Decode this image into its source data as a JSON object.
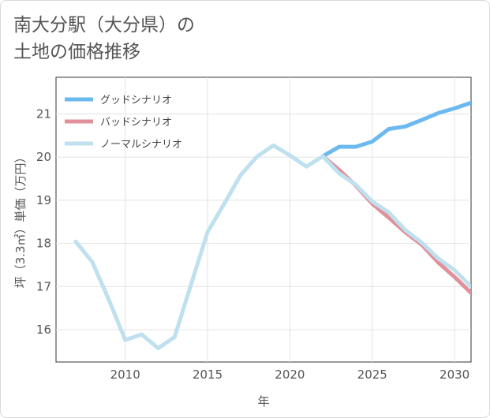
{
  "title_line1": "南大分駅（大分県）の",
  "title_line2": "土地の価格推移",
  "chart_data": {
    "type": "line",
    "title": "南大分駅（大分県）の土地の価格推移",
    "xlabel": "年",
    "ylabel": "坪（3.3㎡）単価（万円）",
    "xlim": [
      2005.8,
      2031
    ],
    "ylim": [
      15.25,
      21.85
    ],
    "xticks": [
      2010,
      2015,
      2020,
      2025,
      2030
    ],
    "yticks": [
      16,
      17,
      18,
      19,
      20,
      21
    ],
    "grid": true,
    "legend_position": "top-left",
    "series": [
      {
        "name": "グッドシナリオ",
        "color": "#6cb9f0",
        "x": [
          2022,
          2023,
          2024,
          2025,
          2026,
          2027,
          2028,
          2029,
          2030,
          2031
        ],
        "values": [
          20.02,
          20.24,
          20.24,
          20.36,
          20.65,
          20.71,
          20.86,
          21.02,
          21.13,
          21.26
        ]
      },
      {
        "name": "バッドシナリオ",
        "color": "#e0919a",
        "x": [
          2022,
          2023,
          2024,
          2025,
          2026,
          2027,
          2028,
          2029,
          2030,
          2031
        ],
        "values": [
          20.02,
          19.7,
          19.34,
          18.92,
          18.6,
          18.26,
          17.97,
          17.56,
          17.22,
          16.85
        ]
      },
      {
        "name": "ノーマルシナリオ",
        "color": "#bfe0ee",
        "x": [
          2007,
          2008,
          2009,
          2010,
          2011,
          2012,
          2013,
          2014,
          2015,
          2016,
          2017,
          2018,
          2019,
          2020,
          2021,
          2022,
          2023,
          2024,
          2025,
          2026,
          2027,
          2028,
          2029,
          2030,
          2031
        ],
        "values": [
          18.04,
          17.57,
          16.7,
          15.76,
          15.89,
          15.57,
          15.83,
          17.05,
          18.26,
          18.91,
          19.58,
          20.01,
          20.27,
          20.04,
          19.78,
          20.02,
          19.62,
          19.36,
          18.97,
          18.72,
          18.31,
          18.02,
          17.65,
          17.38,
          17.0
        ]
      }
    ]
  }
}
